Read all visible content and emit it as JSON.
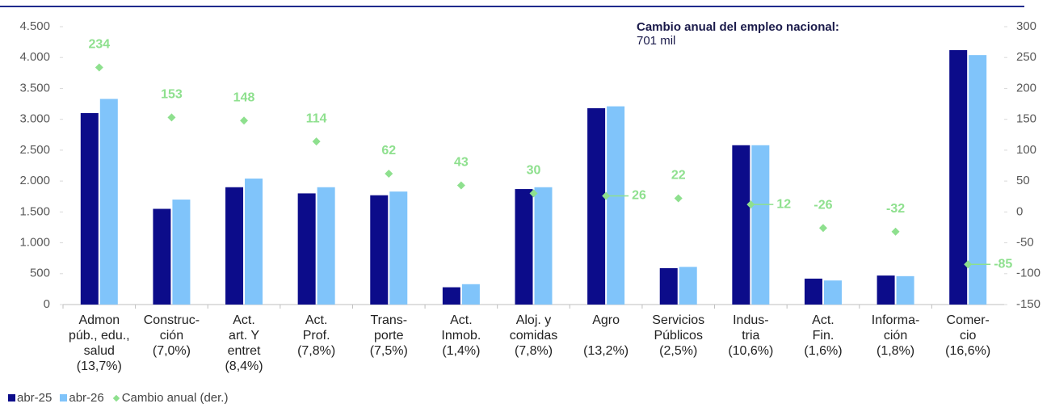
{
  "chart_data": {
    "type": "bar",
    "annotation_title": "Cambio anual del empleo nacional:",
    "annotation_value": "701 mil",
    "categories": [
      "Admon\npúb., edu.,\nsalud\n(13,7%)",
      "Construc-\nción\n(7,0%)",
      "Act.\nart. Y\nentret\n(8,4%)",
      "Act.\nProf.\n(7,8%)",
      "Trans-\nporte\n(7,5%)",
      "Act.\nInmob.\n(1,4%)",
      "Aloj. y\ncomidas\n(7,8%)",
      "Agro\n\n(13,2%)",
      "Servicios\nPúblicos\n(2,5%)",
      "Indus-\ntria\n(10,6%)",
      "Act.\nFin.\n(1,6%)",
      "Informa-\nción\n(1,8%)",
      "Comer-\ncio\n(16,6%)"
    ],
    "series": [
      {
        "name": "abr-25",
        "color": "#0c0c8a",
        "values": [
          3100,
          1550,
          1900,
          1800,
          1770,
          280,
          1870,
          3180,
          590,
          2580,
          420,
          470,
          4120
        ]
      },
      {
        "name": "abr-26",
        "color": "#80c4fa",
        "values": [
          3330,
          1700,
          2040,
          1900,
          1830,
          330,
          1900,
          3210,
          610,
          2580,
          390,
          460,
          4040
        ]
      },
      {
        "name": "Cambio anual (der.)",
        "color": "#8ee08e",
        "axis": "y2",
        "marker": "diamond",
        "values": [
          234,
          153,
          148,
          114,
          62,
          43,
          30,
          26,
          22,
          12,
          -26,
          -32,
          -85
        ]
      }
    ],
    "ylim": [
      0,
      4500
    ],
    "yticks": [
      0,
      {
        "value": 500,
        "label": "500"
      },
      {
        "value": 1000,
        "label": "1.000"
      },
      {
        "value": 1500,
        "label": "1.500"
      },
      {
        "value": 2000,
        "label": "2.000"
      },
      {
        "value": 2500,
        "label": "2.500"
      },
      {
        "value": 3000,
        "label": "3.000"
      },
      {
        "value": 3500,
        "label": "3.500"
      },
      {
        "value": 4000,
        "label": "4.000"
      },
      {
        "value": 4500,
        "label": "4.500"
      }
    ],
    "y2lim": [
      -150,
      300
    ],
    "y2ticks": [
      -150,
      -100,
      -50,
      0,
      50,
      100,
      150,
      200,
      250,
      300
    ],
    "grid": false,
    "legend": "bottom-left"
  }
}
